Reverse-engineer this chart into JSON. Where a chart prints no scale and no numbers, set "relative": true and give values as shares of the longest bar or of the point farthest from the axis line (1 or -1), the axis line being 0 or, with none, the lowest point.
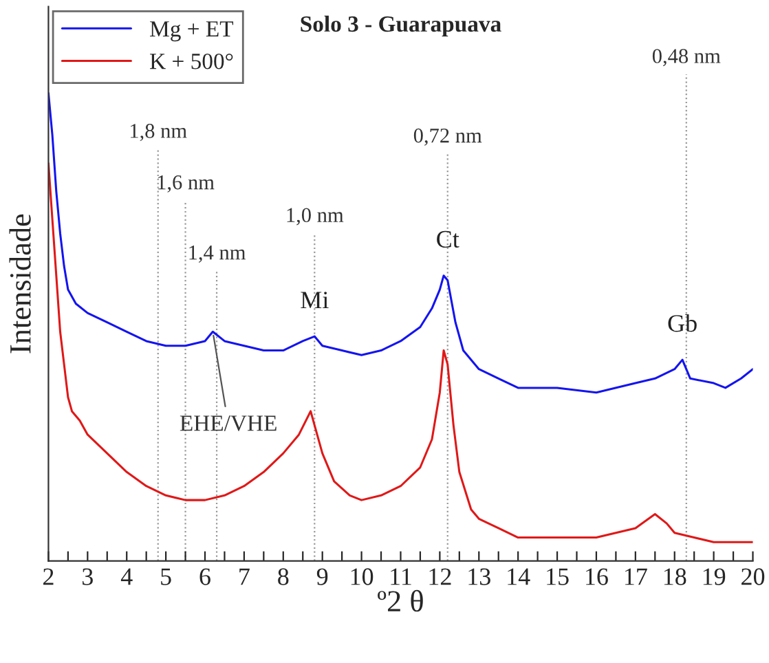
{
  "chart_data": {
    "type": "line",
    "title": "Solo 3 - Guarapuava",
    "xlabel": "º2 θ",
    "ylabel": "Intensidade",
    "relative": true,
    "xlim": [
      2,
      20
    ],
    "xticks": [
      2,
      {
        "value": 2.5,
        "label": null
      },
      3,
      {
        "value": 3.5,
        "label": null
      },
      4,
      {
        "value": 4.5,
        "label": null
      },
      5,
      {
        "value": 5.5,
        "label": null
      },
      6,
      {
        "value": 6.5,
        "label": null
      },
      7,
      {
        "value": 7.5,
        "label": null
      },
      8,
      {
        "value": 8.5,
        "label": null
      },
      9,
      {
        "value": 9.5,
        "label": null
      },
      10,
      {
        "value": 10.5,
        "label": null
      },
      11,
      {
        "value": 11.5,
        "label": null
      },
      12,
      {
        "value": 12.5,
        "label": null
      },
      13,
      {
        "value": 13.5,
        "label": null
      },
      14,
      {
        "value": 14.5,
        "label": null
      },
      15,
      {
        "value": 15.5,
        "label": null
      },
      16,
      {
        "value": 16.5,
        "label": null
      },
      17,
      {
        "value": 17.5,
        "label": null
      },
      18,
      {
        "value": 18.5,
        "label": null
      },
      19,
      {
        "value": 19.5,
        "label": null
      },
      20
    ],
    "tick_labels": "x",
    "legend": "top left",
    "grid": false,
    "series": [
      {
        "name": "Mg + ET",
        "color": "#1414f0",
        "x": [
          2,
          2.1,
          2.2,
          2.3,
          2.4,
          2.5,
          2.7,
          3.0,
          3.5,
          4.0,
          4.5,
          5.0,
          5.5,
          6.0,
          6.2,
          6.5,
          7.0,
          7.5,
          8.0,
          8.5,
          8.8,
          9.0,
          9.5,
          10.0,
          10.5,
          11.0,
          11.5,
          11.8,
          12.0,
          12.1,
          12.2,
          12.4,
          12.6,
          13.0,
          13.5,
          14,
          15,
          16,
          17,
          17.5,
          18.0,
          18.2,
          18.4,
          19.0,
          19.3,
          19.7,
          20
        ],
        "values": [
          1.0,
          0.91,
          0.79,
          0.7,
          0.63,
          0.58,
          0.55,
          0.53,
          0.51,
          0.49,
          0.47,
          0.46,
          0.46,
          0.47,
          0.49,
          0.47,
          0.46,
          0.45,
          0.45,
          0.47,
          0.48,
          0.46,
          0.45,
          0.44,
          0.45,
          0.47,
          0.5,
          0.54,
          0.58,
          0.61,
          0.6,
          0.51,
          0.45,
          0.41,
          0.39,
          0.37,
          0.37,
          0.36,
          0.38,
          0.39,
          0.41,
          0.43,
          0.39,
          0.38,
          0.37,
          0.39,
          0.41
        ]
      },
      {
        "name": "K + 500°",
        "color": "#e01818",
        "x": [
          2,
          2.1,
          2.2,
          2.3,
          2.4,
          2.5,
          2.6,
          2.8,
          3.0,
          3.5,
          4.0,
          4.5,
          5.0,
          5.5,
          6.0,
          6.5,
          7.0,
          7.5,
          8.0,
          8.4,
          8.7,
          8.8,
          9.0,
          9.3,
          9.7,
          10.0,
          10.5,
          11.0,
          11.5,
          11.8,
          12.0,
          12.1,
          12.2,
          12.35,
          12.5,
          12.8,
          13.0,
          13.5,
          14,
          15,
          16,
          16.5,
          17.0,
          17.5,
          17.8,
          18.0,
          18.5,
          19,
          19.5,
          20
        ],
        "values": [
          0.85,
          0.73,
          0.61,
          0.49,
          0.42,
          0.35,
          0.32,
          0.3,
          0.27,
          0.23,
          0.19,
          0.16,
          0.14,
          0.13,
          0.13,
          0.14,
          0.16,
          0.19,
          0.23,
          0.27,
          0.32,
          0.29,
          0.23,
          0.17,
          0.14,
          0.13,
          0.14,
          0.16,
          0.2,
          0.26,
          0.36,
          0.45,
          0.42,
          0.29,
          0.19,
          0.11,
          0.09,
          0.07,
          0.05,
          0.05,
          0.05,
          0.06,
          0.07,
          0.1,
          0.08,
          0.06,
          0.05,
          0.04,
          0.04,
          0.04
        ]
      }
    ],
    "ref_lines": [
      {
        "axis": "x",
        "value": 4.8,
        "label": "1,8 nm",
        "line_style": "dotted",
        "color": "#999999"
      },
      {
        "axis": "x",
        "value": 5.5,
        "label": "1,6 nm",
        "line_style": "dotted",
        "color": "#999999"
      },
      {
        "axis": "x",
        "value": 6.3,
        "label": "1,4 nm",
        "line_style": "dotted",
        "color": "#999999"
      },
      {
        "axis": "x",
        "value": 8.8,
        "label": "1,0 nm",
        "line_style": "dotted",
        "color": "#999999"
      },
      {
        "axis": "x",
        "value": 12.2,
        "label": "0,72 nm",
        "line_style": "dotted",
        "color": "#999999"
      },
      {
        "axis": "x",
        "value": 18.3,
        "label": "0,48 nm",
        "line_style": "dotted",
        "color": "#999999"
      }
    ],
    "annotations": [
      {
        "text": "EHE/VHE",
        "x": 6.2,
        "y": 0.49
      },
      {
        "text": "Mi",
        "x": 8.8,
        "y": 0.48
      },
      {
        "text": "Ct",
        "x": 12.2,
        "y": 0.61
      },
      {
        "text": "Gb",
        "x": 18.2,
        "y": 0.43
      }
    ]
  }
}
